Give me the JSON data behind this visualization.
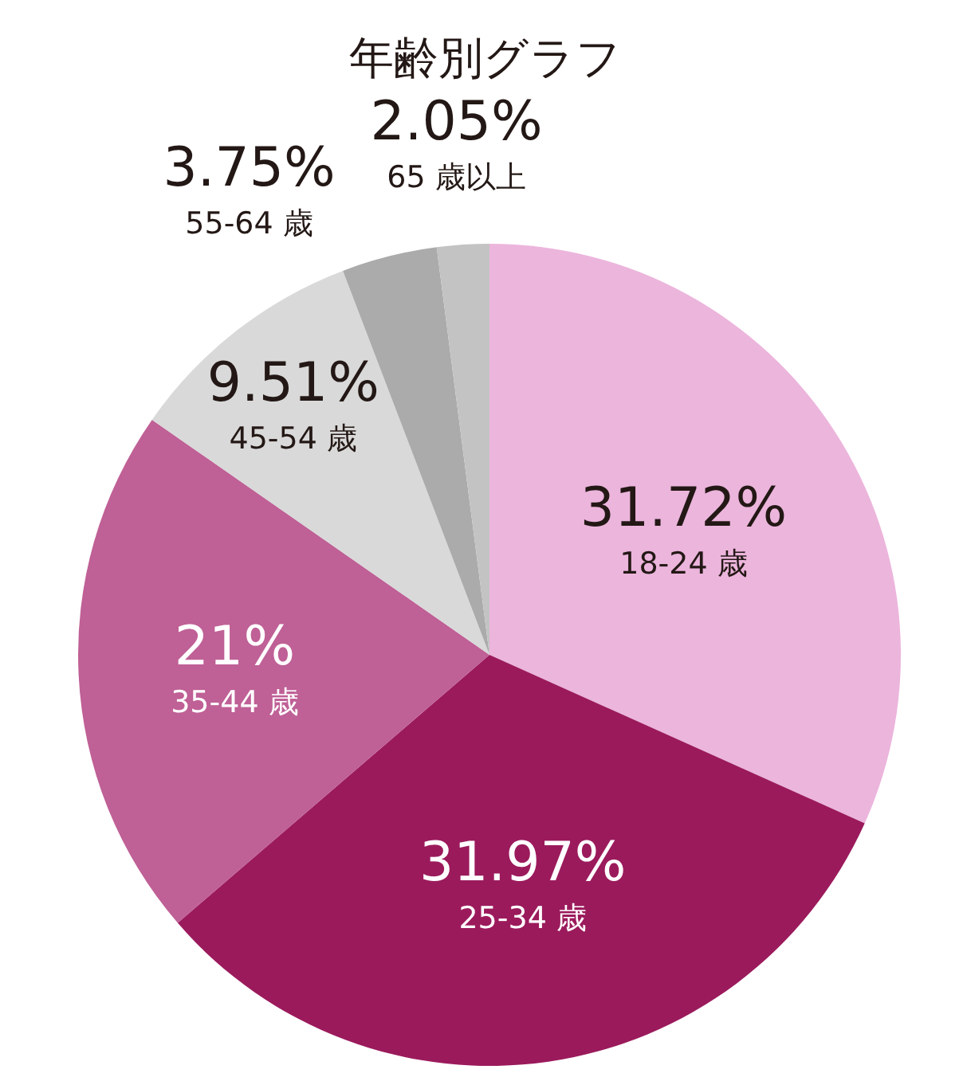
{
  "chart_data": {
    "type": "pie",
    "title": "年齢別グラフ",
    "categories": [
      "18-24 歳",
      "25-34 歳",
      "35-44 歳",
      "45-54 歳",
      "55-64 歳",
      "65 歳以上"
    ],
    "values": [
      31.72,
      31.97,
      21,
      9.51,
      3.75,
      2.05
    ],
    "value_labels": [
      "31.72%",
      "31.97%",
      "21%",
      "9.51%",
      "3.75%",
      "2.05%"
    ],
    "colors": [
      "#ecb5dc",
      "#9b1a5c",
      "#bf6096",
      "#d9d9d9",
      "#ababab",
      "#c3c3c3"
    ],
    "legend": false
  }
}
